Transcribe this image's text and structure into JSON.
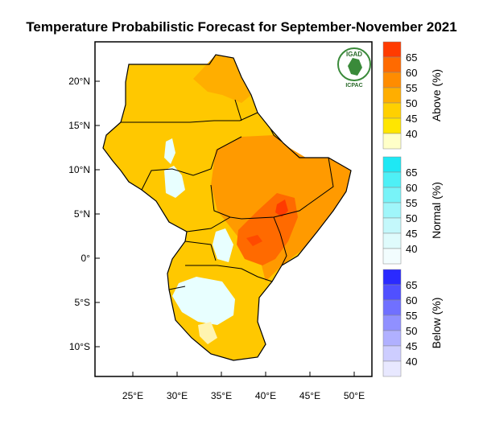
{
  "title": "Temperature Probabilistic Forecast for September-November 2021",
  "map": {
    "lat_ticks": [
      "20°N",
      "15°N",
      "10°N",
      "5°N",
      "0°",
      "5°S",
      "10°S"
    ],
    "lon_ticks": [
      "25°E",
      "30°E",
      "35°E",
      "40°E",
      "45°E",
      "50°E"
    ]
  },
  "logo": {
    "top_text": "IGAD",
    "bottom_text": "ICPAC"
  },
  "legends": [
    {
      "title": "Above (%)",
      "labels": [
        "65",
        "60",
        "55",
        "50",
        "45",
        "40"
      ],
      "colors": [
        "#ff3b00",
        "#ff6a00",
        "#ff8c00",
        "#ffae00",
        "#ffd000",
        "#ffe600",
        "#ffffc8"
      ]
    },
    {
      "title": "Normal (%)",
      "labels": [
        "65",
        "60",
        "55",
        "50",
        "45",
        "40"
      ],
      "colors": [
        "#1ee8f4",
        "#4ef0f6",
        "#78f3f8",
        "#a0f6fa",
        "#c4f8fb",
        "#dffbfc",
        "#f2fdfe"
      ]
    },
    {
      "title": "Below (%)",
      "labels": [
        "65",
        "60",
        "55",
        "50",
        "45",
        "40"
      ],
      "colors": [
        "#2a2aff",
        "#5050ff",
        "#7070ff",
        "#9090ff",
        "#b0b0ff",
        "#cdcdff",
        "#e8e8ff"
      ]
    }
  ]
}
